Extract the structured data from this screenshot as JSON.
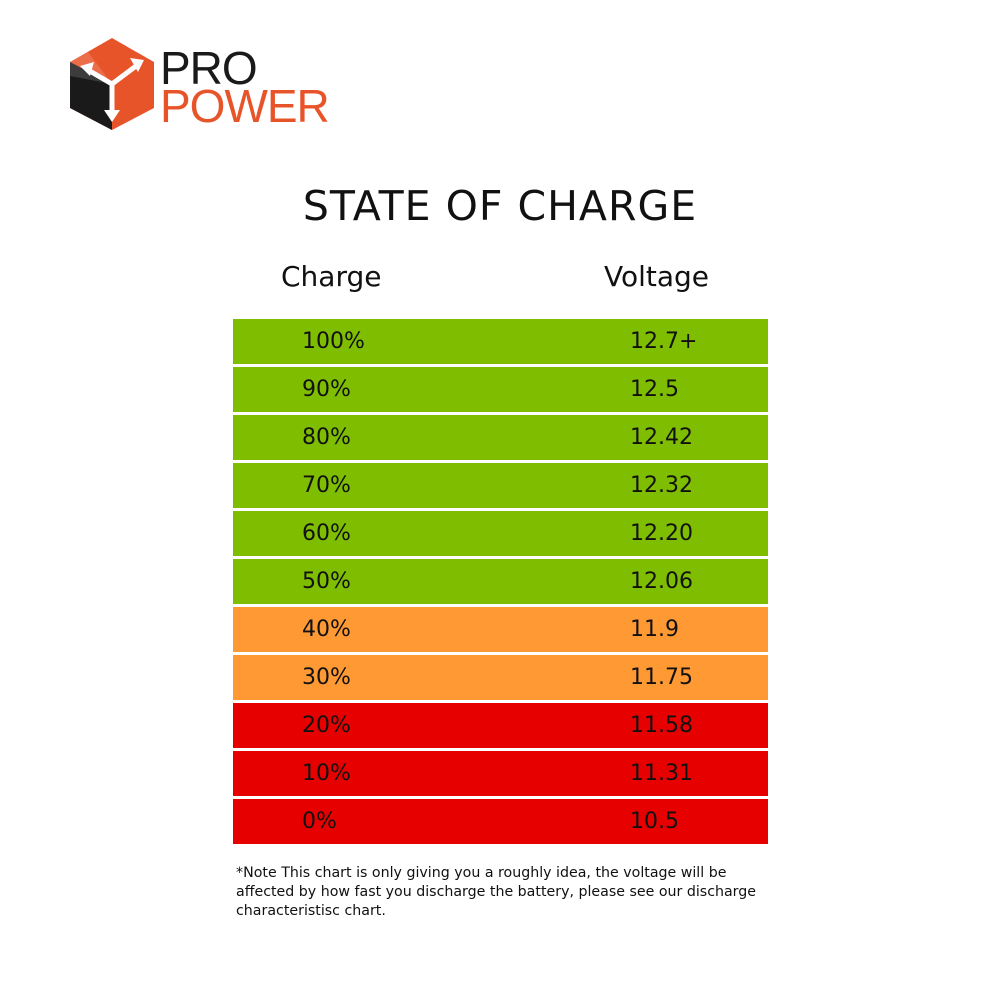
{
  "logo": {
    "line1": "PRO",
    "line2": "POWER",
    "colors": {
      "orange": "#e8542a",
      "dark": "#1a1a1a"
    }
  },
  "chart_data": {
    "type": "table",
    "title": "STATE OF CHARGE",
    "columns": [
      "Charge",
      "Voltage"
    ],
    "rows": [
      {
        "charge": "100%",
        "voltage": "12.7+",
        "level": "green"
      },
      {
        "charge": "90%",
        "voltage": "12.5",
        "level": "green"
      },
      {
        "charge": "80%",
        "voltage": "12.42",
        "level": "green"
      },
      {
        "charge": "70%",
        "voltage": "12.32",
        "level": "green"
      },
      {
        "charge": "60%",
        "voltage": "12.20",
        "level": "green"
      },
      {
        "charge": "50%",
        "voltage": "12.06",
        "level": "green"
      },
      {
        "charge": "40%",
        "voltage": "11.9",
        "level": "orange"
      },
      {
        "charge": "30%",
        "voltage": "11.75",
        "level": "orange"
      },
      {
        "charge": "20%",
        "voltage": "11.58",
        "level": "red"
      },
      {
        "charge": "10%",
        "voltage": "11.31",
        "level": "red"
      },
      {
        "charge": "0%",
        "voltage": "10.5",
        "level": "red"
      }
    ],
    "level_colors": {
      "green": "#7fbd00",
      "orange": "#ff9933",
      "red": "#e60000"
    }
  },
  "note": "*Note This chart is only giving you a roughly idea, the voltage will be affected by how fast you discharge the battery, please see our discharge characteristisc chart."
}
